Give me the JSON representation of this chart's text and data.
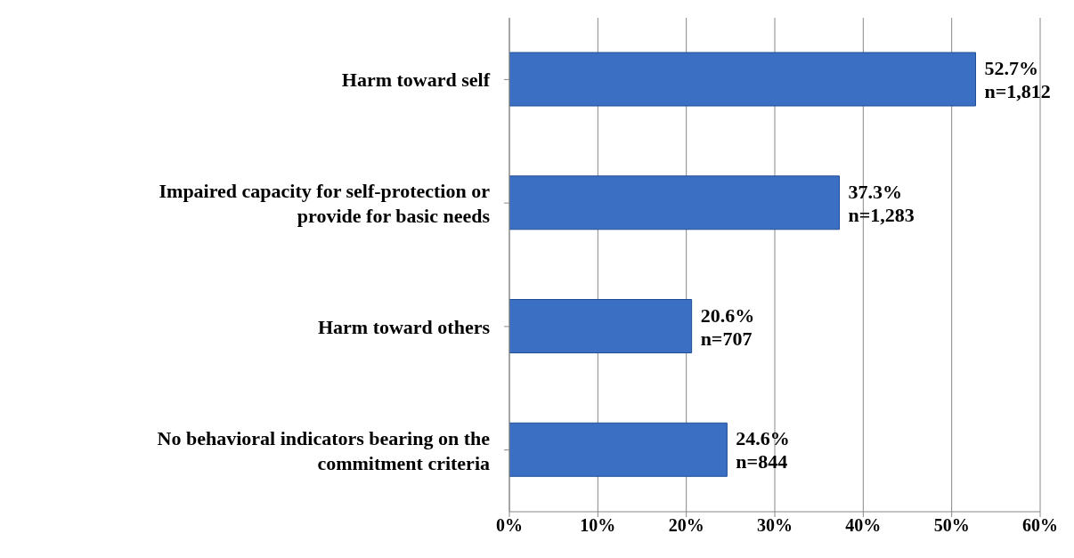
{
  "chart_data": {
    "type": "bar",
    "orientation": "horizontal",
    "categories": [
      "Harm toward self",
      "Impaired capacity for self-protection or provide for basic needs",
      "Harm toward others",
      "No behavioral indicators bearing on the commitment criteria"
    ],
    "values": [
      52.7,
      37.3,
      20.6,
      24.6
    ],
    "value_labels": [
      "52.7%\nn=1,812",
      "37.3%\nn=1,283",
      "20.6%\nn=707",
      "24.6%\nn=844"
    ],
    "color": "#3a6fc4",
    "xlim": [
      0,
      60
    ],
    "xticks": [
      {
        "value": 0,
        "label": "0%"
      },
      {
        "value": 10,
        "label": "10%"
      },
      {
        "value": 20,
        "label": "20%"
      },
      {
        "value": 30,
        "label": "30%"
      },
      {
        "value": 40,
        "label": "40%"
      },
      {
        "value": 50,
        "label": "50%"
      },
      {
        "value": 60,
        "label": "60%"
      }
    ],
    "grid": "x"
  }
}
